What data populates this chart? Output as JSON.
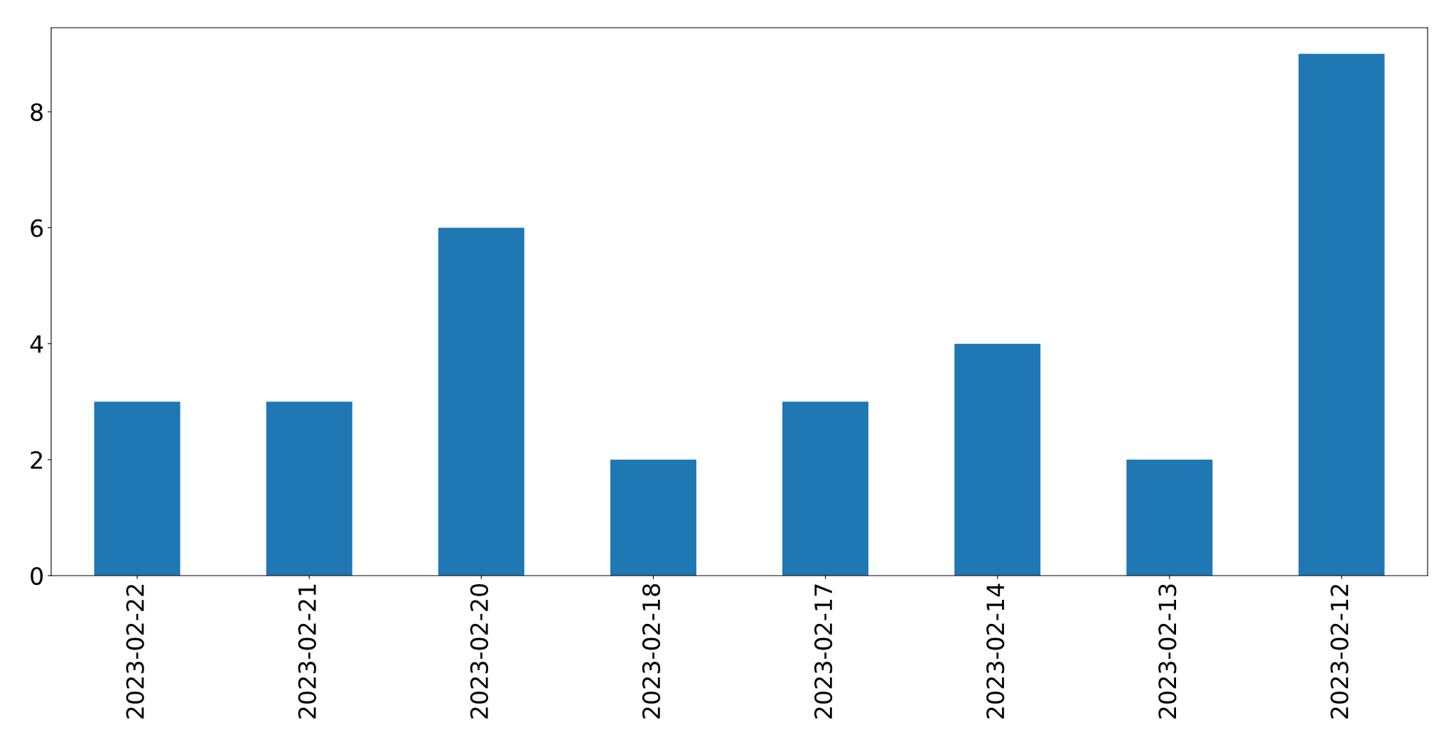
{
  "chart_data": {
    "type": "bar",
    "categories": [
      "2023-02-22",
      "2023-02-21",
      "2023-02-20",
      "2023-02-18",
      "2023-02-17",
      "2023-02-14",
      "2023-02-13",
      "2023-02-12"
    ],
    "values": [
      3,
      3,
      6,
      2,
      3,
      4,
      2,
      9
    ],
    "color": "#1f77b4",
    "ylim": [
      0,
      9.45
    ],
    "yticks": [
      0,
      2,
      4,
      6,
      8
    ],
    "grid": false
  }
}
